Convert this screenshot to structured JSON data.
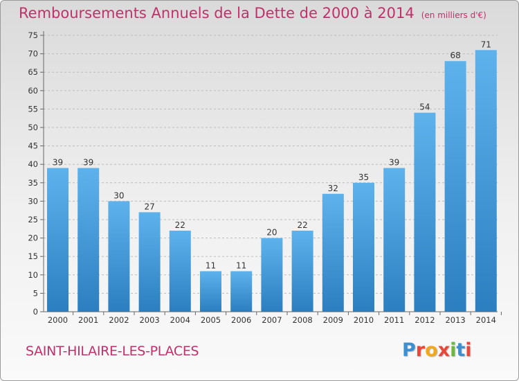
{
  "title": "Remboursements Annuels de la Dette de 2000 à 2014",
  "unit": "(en milliers d'€)",
  "commune": "SAINT-HILAIRE-LES-PLACES",
  "logo": [
    "P",
    "r",
    "o",
    "x",
    "i",
    "t",
    "i"
  ],
  "colors": {
    "title": "#c0306a",
    "bar_top": "#5eb2ec",
    "bar_bottom": "#2b7fc0",
    "grid": "#b8b8b8"
  },
  "chart_data": {
    "type": "bar",
    "title": "Remboursements Annuels de la Dette de 2000 à 2014",
    "categories": [
      "2000",
      "2001",
      "2002",
      "2003",
      "2004",
      "2005",
      "2006",
      "2007",
      "2008",
      "2009",
      "2010",
      "2011",
      "2012",
      "2013",
      "2014"
    ],
    "values": [
      39,
      39,
      30,
      27,
      22,
      11,
      11,
      20,
      22,
      32,
      35,
      39,
      54,
      68,
      71
    ],
    "ylim": [
      0,
      75
    ],
    "yticks": [
      0,
      5,
      10,
      15,
      20,
      25,
      30,
      35,
      40,
      45,
      50,
      55,
      60,
      65,
      70,
      75
    ],
    "grid": true,
    "legend": "none"
  }
}
